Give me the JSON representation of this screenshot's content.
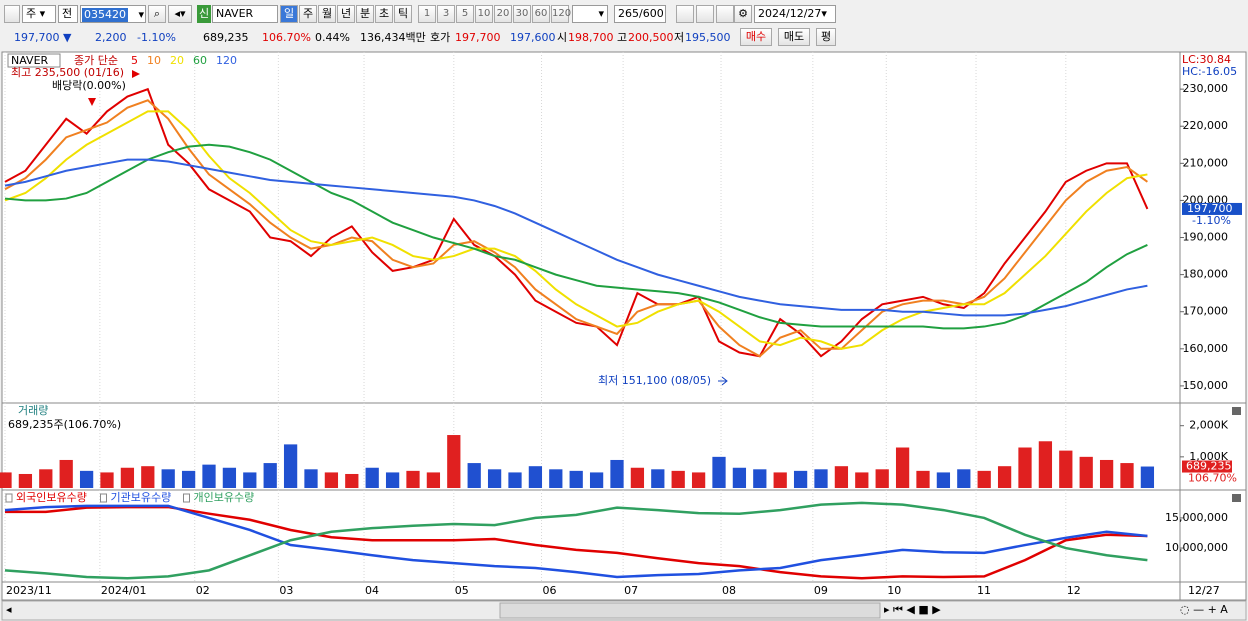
{
  "toolbar": {
    "market": "주",
    "scope": "전",
    "code": "035420",
    "name": "NAVER",
    "new_badge": "신",
    "periods": [
      "일",
      "주",
      "월",
      "년",
      "분",
      "초",
      "틱"
    ],
    "intervals": [
      "1",
      "3",
      "5",
      "10",
      "20",
      "30",
      "60",
      "120"
    ],
    "count": "265",
    "max": "/600",
    "date": "2024/12/27"
  },
  "quote": {
    "price": "197,700 ▼",
    "change": "2,200",
    "change_rate": "-1.10%",
    "volume": "689,235",
    "volume_rate": "106.70%",
    "turnover": "0.44%",
    "amount": "136,434백만",
    "ask_label": "호가",
    "ask": "197,700",
    "bid": "197,600",
    "open_label": "시",
    "open": "198,700",
    "high_label": "고",
    "high": "200,500",
    "low_label": "저",
    "low": "195,500",
    "buy": "매수",
    "sell": "매도",
    "avg": "평"
  },
  "x_axis": {
    "ticks": [
      {
        "value": 0,
        "label": "2023/11"
      },
      {
        "value": 4.65,
        "label": "2024/01"
      },
      {
        "value": 9.3,
        "label": "02"
      },
      {
        "value": 13.4,
        "label": "03"
      },
      {
        "value": 17.6,
        "label": "04"
      },
      {
        "value": 22,
        "label": "05"
      },
      {
        "value": 26.3,
        "label": "06"
      },
      {
        "value": 30.3,
        "label": "07"
      },
      {
        "value": 35.1,
        "label": "08"
      },
      {
        "value": 39.6,
        "label": "09"
      },
      {
        "value": 43.2,
        "label": "10"
      },
      {
        "value": 47.6,
        "label": "11"
      },
      {
        "value": 52,
        "label": "12"
      }
    ],
    "end_label": "12/27"
  },
  "chart_data": [
    {
      "type": "line",
      "title": "NAVER",
      "legend_prefix": "종가 단순",
      "lc": "LC:30.84",
      "hc": "HC:-16.05",
      "high_note": "최고 235,500 (01/16)",
      "dividend_note": "배당락(0.00%)",
      "low_note": "최저 151,100 (08/05)",
      "last_label": "197,700",
      "last_change": "-1.10%",
      "x": [
        0,
        1,
        2,
        3,
        4,
        5,
        6,
        7,
        8,
        9,
        10,
        11,
        12,
        13,
        14,
        15,
        16,
        17,
        18,
        19,
        20,
        21,
        22,
        23,
        24,
        25,
        26,
        27,
        28,
        29,
        30,
        31,
        32,
        33,
        34,
        35,
        36,
        37,
        38,
        39,
        40,
        41,
        42,
        43,
        44,
        45,
        46,
        47,
        48,
        49,
        50,
        51,
        52,
        53,
        54,
        55,
        56
      ],
      "xlim": [
        0,
        57.5
      ],
      "ylim": [
        146200,
        239200
      ],
      "yticks": [
        {
          "value": 230000,
          "label": "230,000"
        },
        {
          "value": 220000,
          "label": "220,000"
        },
        {
          "value": 210000,
          "label": "210,000"
        },
        {
          "value": 200000,
          "label": "200,000"
        },
        {
          "value": 190000,
          "label": "190,000"
        },
        {
          "value": 180000,
          "label": "180,000"
        },
        {
          "value": 170000,
          "label": "170,000"
        },
        {
          "value": 160000,
          "label": "160,000"
        },
        {
          "value": 150000,
          "label": "150,000"
        }
      ],
      "series": [
        {
          "name": "5",
          "color": "#e00000",
          "values": [
            205000,
            208000,
            215000,
            222000,
            218000,
            224000,
            228000,
            230000,
            215000,
            210000,
            203000,
            200000,
            197000,
            190000,
            189000,
            185000,
            190000,
            193000,
            186000,
            181000,
            182000,
            184000,
            195000,
            188000,
            185000,
            180000,
            173000,
            170000,
            167000,
            166000,
            161000,
            175000,
            172000,
            172000,
            174000,
            162000,
            159000,
            158000,
            168000,
            164000,
            158000,
            162000,
            168000,
            172000,
            173000,
            174000,
            172000,
            171000,
            175000,
            183000,
            190000,
            197000,
            205000,
            208000,
            210000,
            210000,
            197700
          ]
        },
        {
          "name": "10",
          "color": "#f08020",
          "values": [
            203000,
            206000,
            211000,
            217000,
            219000,
            221000,
            225000,
            227000,
            222000,
            214000,
            207000,
            203000,
            199000,
            194000,
            190000,
            187000,
            188000,
            190000,
            189000,
            184000,
            182000,
            183000,
            188000,
            189000,
            186000,
            182000,
            176000,
            172000,
            168000,
            166000,
            164000,
            170000,
            172000,
            172000,
            173000,
            166000,
            161000,
            158000,
            163000,
            165000,
            160000,
            160000,
            165000,
            170000,
            172000,
            173000,
            173000,
            172000,
            174000,
            179000,
            186000,
            193000,
            200000,
            205000,
            208000,
            209000,
            205000
          ]
        },
        {
          "name": "20",
          "color": "#f0e000",
          "values": [
            200000,
            202000,
            206000,
            211000,
            215000,
            218000,
            221000,
            224000,
            224000,
            219000,
            212000,
            206000,
            202000,
            197000,
            192000,
            189000,
            188000,
            189000,
            190000,
            188000,
            185000,
            184000,
            185000,
            187000,
            187000,
            185000,
            181000,
            176000,
            172000,
            169000,
            166000,
            167000,
            170000,
            172000,
            173000,
            170000,
            166000,
            162000,
            161000,
            163000,
            162000,
            160000,
            161000,
            165000,
            168000,
            170000,
            171000,
            172000,
            172000,
            175000,
            180000,
            185000,
            191000,
            197000,
            202000,
            206000,
            207000
          ]
        },
        {
          "name": "60",
          "color": "#20a040",
          "values": [
            200500,
            200000,
            200000,
            200500,
            202000,
            205000,
            208000,
            211000,
            213000,
            214500,
            215000,
            214500,
            213000,
            211000,
            208000,
            205000,
            202000,
            200000,
            197000,
            194000,
            192000,
            190000,
            188500,
            187000,
            185000,
            184000,
            182000,
            180000,
            178500,
            177000,
            176500,
            176000,
            175500,
            175000,
            174000,
            172500,
            170500,
            168500,
            167000,
            166500,
            166000,
            166000,
            166000,
            166000,
            166000,
            166000,
            165500,
            165500,
            166000,
            167000,
            169000,
            172000,
            175000,
            178000,
            182000,
            185500,
            188000
          ]
        },
        {
          "name": "120",
          "color": "#3060e0",
          "values": [
            204000,
            205000,
            206500,
            208000,
            209000,
            210000,
            211000,
            211000,
            210500,
            209500,
            208500,
            207500,
            206500,
            205500,
            205000,
            204500,
            204000,
            203500,
            203000,
            202500,
            202000,
            201500,
            201000,
            200000,
            198500,
            196500,
            194000,
            191500,
            189000,
            186500,
            184000,
            182000,
            180000,
            178500,
            177000,
            175500,
            174000,
            173000,
            172000,
            171500,
            171000,
            170500,
            170500,
            170500,
            170000,
            170000,
            169500,
            169000,
            169000,
            169000,
            169500,
            170500,
            171500,
            173000,
            174500,
            176000,
            177000
          ]
        }
      ]
    },
    {
      "type": "bar",
      "title": "거래량",
      "subtitle": "689,235주(106.70%)",
      "last_label": "689,235",
      "last_change": "106.70%",
      "up_color": "#e02020",
      "down_color": "#2050d0",
      "x": [
        0,
        1,
        2,
        3,
        4,
        5,
        6,
        7,
        8,
        9,
        10,
        11,
        12,
        13,
        14,
        15,
        16,
        17,
        18,
        19,
        20,
        21,
        22,
        23,
        24,
        25,
        26,
        27,
        28,
        29,
        30,
        31,
        32,
        33,
        34,
        35,
        36,
        37,
        38,
        39,
        40,
        41,
        42,
        43,
        44,
        45,
        46,
        47,
        48,
        49,
        50,
        51,
        52,
        53,
        54,
        55,
        56
      ],
      "xlim": [
        0,
        57.5
      ],
      "ylim": [
        0,
        2600000
      ],
      "yticks": [
        {
          "value": 2000000,
          "label": "2,000K"
        },
        {
          "value": 1000000,
          "label": "1,000K"
        }
      ],
      "values": [
        500000,
        450000,
        600000,
        900000,
        550000,
        500000,
        650000,
        700000,
        600000,
        550000,
        750000,
        650000,
        500000,
        800000,
        1400000,
        600000,
        500000,
        450000,
        650000,
        500000,
        550000,
        500000,
        1700000,
        800000,
        600000,
        500000,
        700000,
        600000,
        550000,
        500000,
        900000,
        650000,
        600000,
        550000,
        500000,
        1000000,
        650000,
        600000,
        500000,
        550000,
        600000,
        700000,
        500000,
        600000,
        1300000,
        550000,
        500000,
        600000,
        550000,
        700000,
        1300000,
        1500000,
        1200000,
        1000000,
        900000,
        800000,
        689235
      ]
    },
    {
      "type": "line",
      "x": [
        0,
        2,
        4,
        6,
        8,
        10,
        12,
        14,
        16,
        18,
        20,
        22,
        24,
        26,
        28,
        30,
        32,
        34,
        36,
        38,
        40,
        42,
        44,
        46,
        48,
        50,
        52,
        54,
        56
      ],
      "xlim": [
        0,
        57.5
      ],
      "ylim": [
        4700000,
        19300000
      ],
      "yticks": [
        {
          "value": 15000000,
          "label": "15,000,000"
        },
        {
          "value": 10000000,
          "label": "10,000,000"
        }
      ],
      "series": [
        {
          "name": "외국인보유수량",
          "color": "#e00000",
          "values": [
            16000000,
            16000000,
            16700000,
            16800000,
            16800000,
            15700000,
            14700000,
            13000000,
            11800000,
            11300000,
            11300000,
            11300000,
            11500000,
            10500000,
            9700000,
            9200000,
            8300000,
            7500000,
            7000000,
            6000000,
            5300000,
            5000000,
            5300000,
            5200000,
            5300000,
            8000000,
            11300000,
            12200000,
            12000000
          ]
        },
        {
          "name": "기관보유수량",
          "color": "#2050e0",
          "values": [
            16300000,
            16800000,
            17000000,
            17000000,
            17000000,
            15000000,
            13000000,
            10500000,
            9700000,
            8800000,
            8000000,
            7500000,
            7000000,
            6700000,
            6000000,
            5200000,
            5500000,
            5700000,
            6300000,
            6700000,
            8000000,
            8800000,
            9700000,
            9300000,
            9200000,
            10500000,
            11700000,
            12700000,
            12000000
          ]
        },
        {
          "name": "개인보유수량",
          "color": "#30a060",
          "values": [
            6300000,
            5800000,
            5200000,
            5000000,
            5300000,
            6300000,
            8800000,
            11300000,
            12700000,
            13300000,
            13700000,
            14000000,
            13800000,
            15000000,
            15500000,
            16700000,
            16300000,
            15800000,
            15700000,
            16300000,
            17200000,
            17500000,
            17200000,
            16300000,
            15000000,
            12200000,
            10000000,
            8800000,
            8000000
          ]
        }
      ]
    }
  ]
}
